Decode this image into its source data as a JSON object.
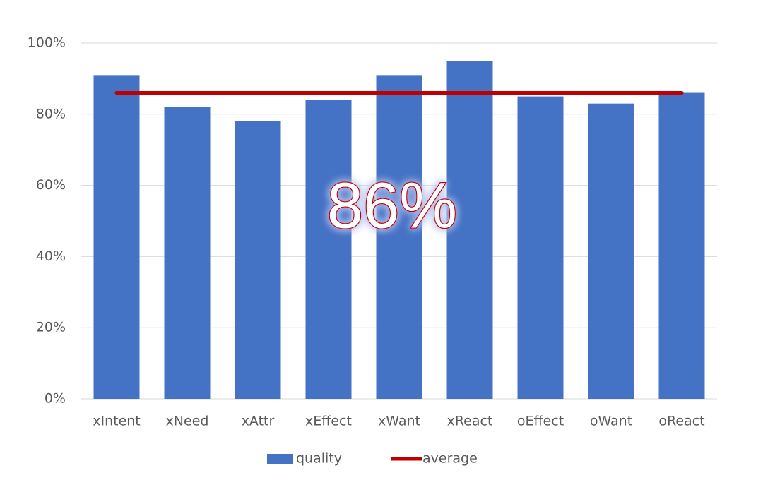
{
  "chart_data": {
    "type": "bar",
    "categories": [
      "xIntent",
      "xNeed",
      "xAttr",
      "xEffect",
      "xWant",
      "xReact",
      "oEffect",
      "oWant",
      "oReact"
    ],
    "series": [
      {
        "name": "quality",
        "type": "bar",
        "color": "#4472c4",
        "values": [
          91,
          82,
          78,
          84,
          91,
          95,
          85,
          83,
          86
        ]
      },
      {
        "name": "average",
        "type": "line",
        "color": "#c00000",
        "values": [
          86,
          86,
          86,
          86,
          86,
          86,
          86,
          86,
          86
        ]
      }
    ],
    "ylim": [
      0,
      100
    ],
    "yticks": [
      {
        "value": 0,
        "label": "0%"
      },
      {
        "value": 20,
        "label": "20%"
      },
      {
        "value": 40,
        "label": "40%"
      },
      {
        "value": 60,
        "label": "60%"
      },
      {
        "value": 80,
        "label": "80%"
      },
      {
        "value": 100,
        "label": "100%"
      }
    ],
    "grid": true,
    "legend": "bottom",
    "annotation": "86%"
  }
}
